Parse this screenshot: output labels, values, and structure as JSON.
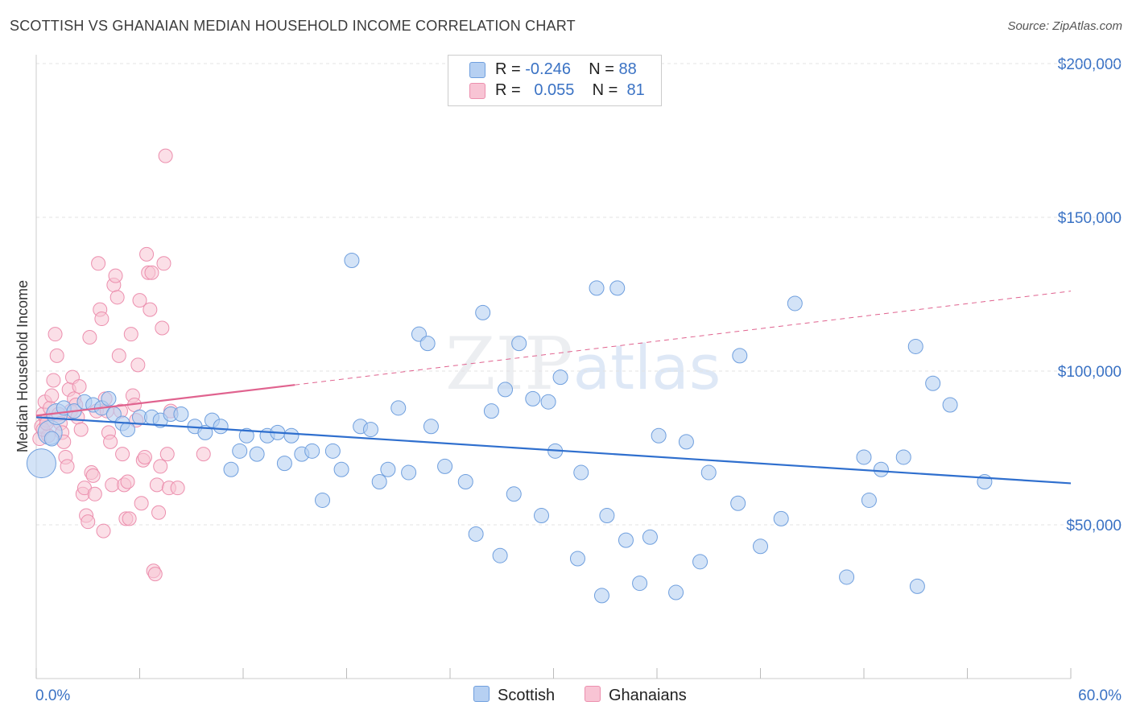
{
  "header": {
    "title": "SCOTTISH VS GHANAIAN MEDIAN HOUSEHOLD INCOME CORRELATION CHART",
    "source": "Source: ZipAtlas.com"
  },
  "legend": {
    "rows": [
      {
        "r_label": "R =",
        "r_value": "-0.246",
        "n_label": "N =",
        "n_value": "88",
        "color": "#a9c8f0"
      },
      {
        "r_label": "R =",
        "r_value": "0.055",
        "n_label": "N =",
        "n_value": "81",
        "color": "#f7b8cb"
      }
    ]
  },
  "bottom_legend": [
    {
      "label": "Scottish",
      "color": "#a9c8f0"
    },
    {
      "label": "Ghanaians",
      "color": "#f7b8cb"
    }
  ],
  "watermark": {
    "part1": "ZIP",
    "part2": "atlas"
  },
  "chart_data": {
    "type": "scatter",
    "title": "SCOTTISH VS GHANAIAN MEDIAN HOUSEHOLD INCOME CORRELATION CHART",
    "xlabel": "",
    "ylabel": "Median Household Income",
    "xlim": [
      0,
      60
    ],
    "ylim": [
      0,
      210000
    ],
    "x_tick_labels": [
      "0.0%",
      "60.0%"
    ],
    "y_ticks": [
      50000,
      100000,
      150000,
      200000
    ],
    "y_tick_labels": [
      "$50,000",
      "$100,000",
      "$150,000",
      "$200,000"
    ],
    "grid": true,
    "colors": {
      "scottish": "#6f9fde",
      "scottish_fill": "#b6d0f2",
      "ghanaian": "#ec8fae",
      "ghanaian_fill": "#f8c4d4",
      "scottish_line": "#2f6fce",
      "ghanaian_line": "#e0638f"
    },
    "series": [
      {
        "name": "Scottish",
        "points": [
          [
            0.3,
            70000
          ],
          [
            0.8,
            80000
          ],
          [
            1.2,
            86000
          ],
          [
            1.6,
            88000
          ],
          [
            2.2,
            87000
          ],
          [
            2.8,
            90000
          ],
          [
            3.3,
            89000
          ],
          [
            3.8,
            88000
          ],
          [
            4.2,
            91000
          ],
          [
            4.5,
            86000
          ],
          [
            5.0,
            83000
          ],
          [
            5.3,
            81000
          ],
          [
            6.0,
            85000
          ],
          [
            6.7,
            85000
          ],
          [
            7.2,
            84000
          ],
          [
            7.8,
            86000
          ],
          [
            8.4,
            86000
          ],
          [
            9.2,
            82000
          ],
          [
            9.8,
            80000
          ],
          [
            10.2,
            84000
          ],
          [
            10.7,
            82000
          ],
          [
            11.3,
            68000
          ],
          [
            11.8,
            74000
          ],
          [
            12.2,
            79000
          ],
          [
            12.8,
            73000
          ],
          [
            13.4,
            79000
          ],
          [
            14.0,
            80000
          ],
          [
            14.4,
            70000
          ],
          [
            14.8,
            79000
          ],
          [
            15.4,
            73000
          ],
          [
            16.0,
            74000
          ],
          [
            16.6,
            58000
          ],
          [
            17.2,
            74000
          ],
          [
            17.7,
            68000
          ],
          [
            18.3,
            136000
          ],
          [
            18.8,
            82000
          ],
          [
            19.4,
            81000
          ],
          [
            19.9,
            64000
          ],
          [
            20.4,
            68000
          ],
          [
            21.0,
            88000
          ],
          [
            21.6,
            67000
          ],
          [
            22.2,
            112000
          ],
          [
            22.7,
            109000
          ],
          [
            22.9,
            82000
          ],
          [
            23.7,
            69000
          ],
          [
            24.9,
            64000
          ],
          [
            25.5,
            47000
          ],
          [
            25.9,
            119000
          ],
          [
            26.4,
            87000
          ],
          [
            26.9,
            40000
          ],
          [
            27.2,
            94000
          ],
          [
            27.7,
            60000
          ],
          [
            28.0,
            109000
          ],
          [
            28.8,
            91000
          ],
          [
            29.3,
            53000
          ],
          [
            29.7,
            90000
          ],
          [
            30.1,
            74000
          ],
          [
            30.4,
            98000
          ],
          [
            31.4,
            39000
          ],
          [
            31.6,
            67000
          ],
          [
            32.5,
            127000
          ],
          [
            32.8,
            27000
          ],
          [
            33.1,
            53000
          ],
          [
            33.7,
            127000
          ],
          [
            34.2,
            45000
          ],
          [
            35.0,
            31000
          ],
          [
            35.6,
            46000
          ],
          [
            36.1,
            79000
          ],
          [
            37.1,
            28000
          ],
          [
            37.7,
            77000
          ],
          [
            38.5,
            38000
          ],
          [
            39.0,
            67000
          ],
          [
            40.7,
            57000
          ],
          [
            40.8,
            105000
          ],
          [
            42.0,
            43000
          ],
          [
            43.2,
            52000
          ],
          [
            44.0,
            122000
          ],
          [
            47.0,
            33000
          ],
          [
            48.0,
            72000
          ],
          [
            48.3,
            58000
          ],
          [
            49.0,
            68000
          ],
          [
            50.3,
            72000
          ],
          [
            51.0,
            108000
          ],
          [
            51.1,
            30000
          ],
          [
            52.0,
            96000
          ],
          [
            53.0,
            89000
          ],
          [
            55.0,
            64000
          ],
          [
            0.9,
            78000
          ]
        ]
      },
      {
        "name": "Ghanaians",
        "points": [
          [
            0.2,
            78000
          ],
          [
            0.3,
            82000
          ],
          [
            0.4,
            86000
          ],
          [
            0.5,
            90000
          ],
          [
            0.6,
            84000
          ],
          [
            0.7,
            79000
          ],
          [
            0.8,
            88000
          ],
          [
            0.9,
            92000
          ],
          [
            1.0,
            97000
          ],
          [
            1.1,
            112000
          ],
          [
            1.2,
            105000
          ],
          [
            1.3,
            86000
          ],
          [
            1.4,
            83000
          ],
          [
            1.5,
            80000
          ],
          [
            1.6,
            77000
          ],
          [
            1.7,
            72000
          ],
          [
            1.8,
            69000
          ],
          [
            1.9,
            94000
          ],
          [
            2.0,
            87000
          ],
          [
            2.1,
            98000
          ],
          [
            2.2,
            91000
          ],
          [
            2.3,
            89000
          ],
          [
            2.4,
            85000
          ],
          [
            2.5,
            95000
          ],
          [
            2.6,
            81000
          ],
          [
            2.7,
            60000
          ],
          [
            2.8,
            62000
          ],
          [
            2.9,
            53000
          ],
          [
            3.0,
            51000
          ],
          [
            3.1,
            111000
          ],
          [
            3.2,
            67000
          ],
          [
            3.3,
            66000
          ],
          [
            3.4,
            60000
          ],
          [
            3.5,
            87000
          ],
          [
            3.6,
            135000
          ],
          [
            3.7,
            120000
          ],
          [
            3.8,
            117000
          ],
          [
            3.9,
            48000
          ],
          [
            4.0,
            91000
          ],
          [
            4.1,
            87000
          ],
          [
            4.2,
            80000
          ],
          [
            4.3,
            77000
          ],
          [
            4.4,
            63000
          ],
          [
            4.5,
            128000
          ],
          [
            4.6,
            131000
          ],
          [
            4.7,
            124000
          ],
          [
            4.8,
            105000
          ],
          [
            4.9,
            87000
          ],
          [
            5.0,
            73000
          ],
          [
            5.1,
            63000
          ],
          [
            5.2,
            52000
          ],
          [
            5.3,
            64000
          ],
          [
            5.4,
            52000
          ],
          [
            5.5,
            112000
          ],
          [
            5.6,
            92000
          ],
          [
            5.7,
            89000
          ],
          [
            5.8,
            84000
          ],
          [
            5.9,
            102000
          ],
          [
            6.0,
            123000
          ],
          [
            6.1,
            57000
          ],
          [
            6.2,
            71000
          ],
          [
            6.3,
            72000
          ],
          [
            6.4,
            138000
          ],
          [
            6.5,
            132000
          ],
          [
            6.6,
            120000
          ],
          [
            6.7,
            132000
          ],
          [
            6.8,
            35000
          ],
          [
            6.9,
            34000
          ],
          [
            7.0,
            63000
          ],
          [
            7.1,
            54000
          ],
          [
            7.2,
            69000
          ],
          [
            7.3,
            114000
          ],
          [
            7.4,
            135000
          ],
          [
            7.5,
            170000
          ],
          [
            7.6,
            73000
          ],
          [
            7.7,
            62000
          ],
          [
            7.8,
            87000
          ],
          [
            8.2,
            62000
          ],
          [
            0.4,
            81000
          ],
          [
            0.6,
            83000
          ],
          [
            9.7,
            73000
          ]
        ]
      }
    ],
    "trendlines": [
      {
        "series": "Scottish",
        "x": [
          0,
          60
        ],
        "y": [
          85000,
          63500
        ],
        "style": "solid"
      },
      {
        "series": "Ghanaians",
        "x": [
          0,
          15
        ],
        "y": [
          85500,
          95500
        ],
        "style": "solid"
      },
      {
        "series": "Ghanaians",
        "x": [
          15,
          60
        ],
        "y": [
          95500,
          126000
        ],
        "style": "dashed"
      }
    ]
  }
}
